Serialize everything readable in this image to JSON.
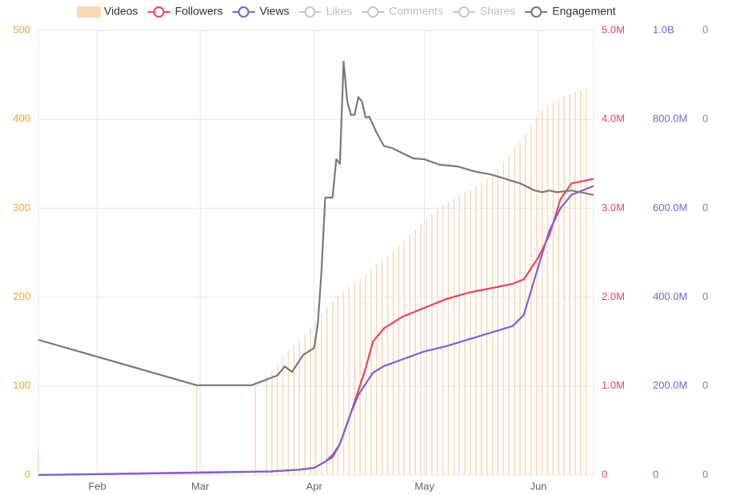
{
  "chart_data": {
    "type": "line",
    "colors": {
      "videos": "#fbd8b4",
      "followers": "#f0435e",
      "views": "#7f5fd6",
      "engagement": "#7a7a7a",
      "inactive": "#c7c7c7",
      "axis_videos": "#f5a623",
      "axis_followers": "#f0435e",
      "axis_views": "#7f5fd6",
      "axis_zero": "#888888",
      "grid": "#e6e6f0"
    },
    "legend": [
      {
        "name": "Videos",
        "color": "#fbd8b4",
        "active": true,
        "style": "bar"
      },
      {
        "name": "Followers",
        "color": "#f0435e",
        "active": true,
        "style": "line"
      },
      {
        "name": "Views",
        "color": "#7f5fd6",
        "active": true,
        "style": "line"
      },
      {
        "name": "Likes",
        "color": "#c7c7c7",
        "active": false,
        "style": "line"
      },
      {
        "name": "Comments",
        "color": "#c7c7c7",
        "active": false,
        "style": "line"
      },
      {
        "name": "Shares",
        "color": "#c7c7c7",
        "active": false,
        "style": "line"
      },
      {
        "name": "Engagement",
        "color": "#7a7a7a",
        "active": true,
        "style": "line"
      }
    ],
    "legend_position": "top",
    "grid": true,
    "x_range": [
      "Jan 16",
      "Jun 16"
    ],
    "x_ticks": [
      {
        "label": "Feb",
        "date": "Feb 1"
      },
      {
        "label": "Mar",
        "date": "Mar 1"
      },
      {
        "label": "Apr",
        "date": "Apr 1"
      },
      {
        "label": "May",
        "date": "May 1"
      },
      {
        "label": "Jun",
        "date": "Jun 1"
      }
    ],
    "axes": {
      "videos": {
        "position": "left",
        "range": [
          0,
          500
        ],
        "ticks": [
          "0",
          "100",
          "200",
          "300",
          "400",
          "500"
        ]
      },
      "followers": {
        "position": "right",
        "range": [
          0,
          5000000
        ],
        "ticks": [
          "0",
          "1.0M",
          "2.0M",
          "3.0M",
          "4.0M",
          "5.0M"
        ]
      },
      "views": {
        "position": "right",
        "range": [
          0,
          1000000000
        ],
        "ticks": [
          "0",
          "200.0M",
          "400.0M",
          "600.0M",
          "800.0M",
          "1.0B"
        ]
      },
      "zero_axis": {
        "position": "right",
        "ticks": [
          "0",
          "0",
          "0",
          "0",
          "0",
          "0"
        ]
      }
    },
    "series": [
      {
        "name": "Videos",
        "axis": "videos",
        "type": "bar",
        "points": [
          [
            "Jan 16",
            25
          ],
          [
            "Feb 28",
            100
          ],
          [
            "Mar 16",
            100
          ],
          [
            "Mar 19",
            110
          ],
          [
            "Mar 21",
            120
          ],
          [
            "Mar 24",
            135
          ],
          [
            "Mar 26",
            145
          ],
          [
            "Mar 29",
            155
          ],
          [
            "Apr 1",
            170
          ],
          [
            "Apr 3",
            180
          ],
          [
            "Apr 5",
            190
          ],
          [
            "Apr 7",
            200
          ],
          [
            "Apr 10",
            210
          ],
          [
            "Apr 13",
            220
          ],
          [
            "Apr 16",
            230
          ],
          [
            "Apr 19",
            240
          ],
          [
            "Apr 22",
            250
          ],
          [
            "Apr 25",
            262
          ],
          [
            "Apr 28",
            274
          ],
          [
            "May 1",
            286
          ],
          [
            "May 4",
            298
          ],
          [
            "May 7",
            306
          ],
          [
            "May 10",
            313
          ],
          [
            "May 13",
            320
          ],
          [
            "May 16",
            327
          ],
          [
            "May 19",
            335
          ],
          [
            "May 22",
            350
          ],
          [
            "May 25",
            365
          ],
          [
            "May 28",
            380
          ],
          [
            "May 31",
            400
          ],
          [
            "Jun 3",
            415
          ],
          [
            "Jun 6",
            422
          ],
          [
            "Jun 9",
            428
          ],
          [
            "Jun 12",
            432
          ],
          [
            "Jun 15",
            435
          ]
        ]
      },
      {
        "name": "Followers",
        "axis": "followers",
        "type": "line",
        "points": [
          [
            "Jan 16",
            0
          ],
          [
            "Mar 1",
            30000
          ],
          [
            "Mar 20",
            40000
          ],
          [
            "Mar 28",
            60000
          ],
          [
            "Apr 1",
            80000
          ],
          [
            "Apr 4",
            150000
          ],
          [
            "Apr 6",
            200000
          ],
          [
            "Apr 8",
            350000
          ],
          [
            "Apr 11",
            700000
          ],
          [
            "Apr 13",
            950000
          ],
          [
            "Apr 15",
            1200000
          ],
          [
            "Apr 17",
            1500000
          ],
          [
            "Apr 20",
            1650000
          ],
          [
            "Apr 25",
            1780000
          ],
          [
            "May 1",
            1880000
          ],
          [
            "May 7",
            1980000
          ],
          [
            "May 13",
            2050000
          ],
          [
            "May 19",
            2100000
          ],
          [
            "May 25",
            2150000
          ],
          [
            "May 28",
            2200000
          ],
          [
            "Jun 1",
            2450000
          ],
          [
            "Jun 4",
            2700000
          ],
          [
            "Jun 7",
            3100000
          ],
          [
            "Jun 10",
            3280000
          ],
          [
            "Jun 16",
            3330000
          ]
        ]
      },
      {
        "name": "Views",
        "axis": "views",
        "type": "line",
        "points": [
          [
            "Jan 16",
            0
          ],
          [
            "Mar 1",
            5000000
          ],
          [
            "Mar 20",
            8000000
          ],
          [
            "Mar 28",
            12000000
          ],
          [
            "Apr 1",
            16000000
          ],
          [
            "Apr 4",
            30000000
          ],
          [
            "Apr 6",
            45000000
          ],
          [
            "Apr 8",
            70000000
          ],
          [
            "Apr 11",
            140000000
          ],
          [
            "Apr 13",
            180000000
          ],
          [
            "Apr 17",
            230000000
          ],
          [
            "Apr 20",
            245000000
          ],
          [
            "Apr 25",
            260000000
          ],
          [
            "May 1",
            278000000
          ],
          [
            "May 7",
            290000000
          ],
          [
            "May 13",
            305000000
          ],
          [
            "May 19",
            320000000
          ],
          [
            "May 25",
            335000000
          ],
          [
            "May 28",
            360000000
          ],
          [
            "Jun 1",
            470000000
          ],
          [
            "Jun 4",
            550000000
          ],
          [
            "Jun 7",
            600000000
          ],
          [
            "Jun 10",
            630000000
          ],
          [
            "Jun 16",
            650000000
          ]
        ]
      },
      {
        "name": "Engagement",
        "axis": "videos",
        "type": "line",
        "points": [
          [
            "Jan 16",
            152
          ],
          [
            "Feb 28",
            101
          ],
          [
            "Mar 15",
            101
          ],
          [
            "Mar 22",
            112
          ],
          [
            "Mar 24",
            122
          ],
          [
            "Mar 26",
            116
          ],
          [
            "Mar 29",
            135
          ],
          [
            "Apr 1",
            143
          ],
          [
            "Apr 2",
            170
          ],
          [
            "Apr 3",
            230
          ],
          [
            "Apr 4",
            312
          ],
          [
            "Apr 6",
            312
          ],
          [
            "Apr 7",
            355
          ],
          [
            "Apr 8",
            350
          ],
          [
            "Apr 9",
            465
          ],
          [
            "Apr 10",
            420
          ],
          [
            "Apr 11",
            405
          ],
          [
            "Apr 12",
            405
          ],
          [
            "Apr 13",
            425
          ],
          [
            "Apr 14",
            420
          ],
          [
            "Apr 15",
            402
          ],
          [
            "Apr 16",
            403
          ],
          [
            "Apr 18",
            385
          ],
          [
            "Apr 20",
            370
          ],
          [
            "Apr 22",
            368
          ],
          [
            "Apr 25",
            362
          ],
          [
            "Apr 28",
            356
          ],
          [
            "May 1",
            355
          ],
          [
            "May 5",
            349
          ],
          [
            "May 10",
            347
          ],
          [
            "May 15",
            341
          ],
          [
            "May 19",
            338
          ],
          [
            "May 23",
            333
          ],
          [
            "May 27",
            328
          ],
          [
            "May 31",
            320
          ],
          [
            "Jun 2",
            318
          ],
          [
            "Jun 4",
            320
          ],
          [
            "Jun 6",
            318
          ],
          [
            "Jun 10",
            320
          ],
          [
            "Jun 16",
            315
          ]
        ]
      }
    ]
  }
}
